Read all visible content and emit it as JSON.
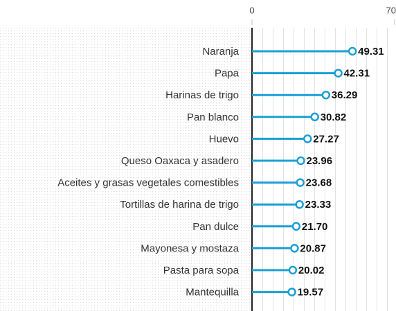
{
  "chart_data": {
    "type": "lollipop",
    "orientation": "horizontal",
    "categories": [
      "Naranja",
      "Papa",
      "Harinas de trigo",
      "Pan blanco",
      "Huevo",
      "Queso Oaxaca y asadero",
      "Aceites y grasas vegetales comestibles",
      "Tortillas de harina de trigo",
      "Pan dulce",
      "Mayonesa y mostaza",
      "Pasta para sopa",
      "Mantequilla"
    ],
    "values": [
      49.31,
      42.31,
      36.29,
      30.82,
      27.27,
      23.96,
      23.68,
      23.33,
      21.7,
      20.87,
      20.02,
      19.57
    ],
    "value_labels": [
      "49.31",
      "42.31",
      "36.29",
      "30.82",
      "27.27",
      "23.96",
      "23.68",
      "23.33",
      "21.70",
      "20.87",
      "20.02",
      "19.57"
    ],
    "color": "#1a9fd6",
    "xlim": [
      0,
      70
    ],
    "xticks": [
      0,
      70
    ]
  }
}
